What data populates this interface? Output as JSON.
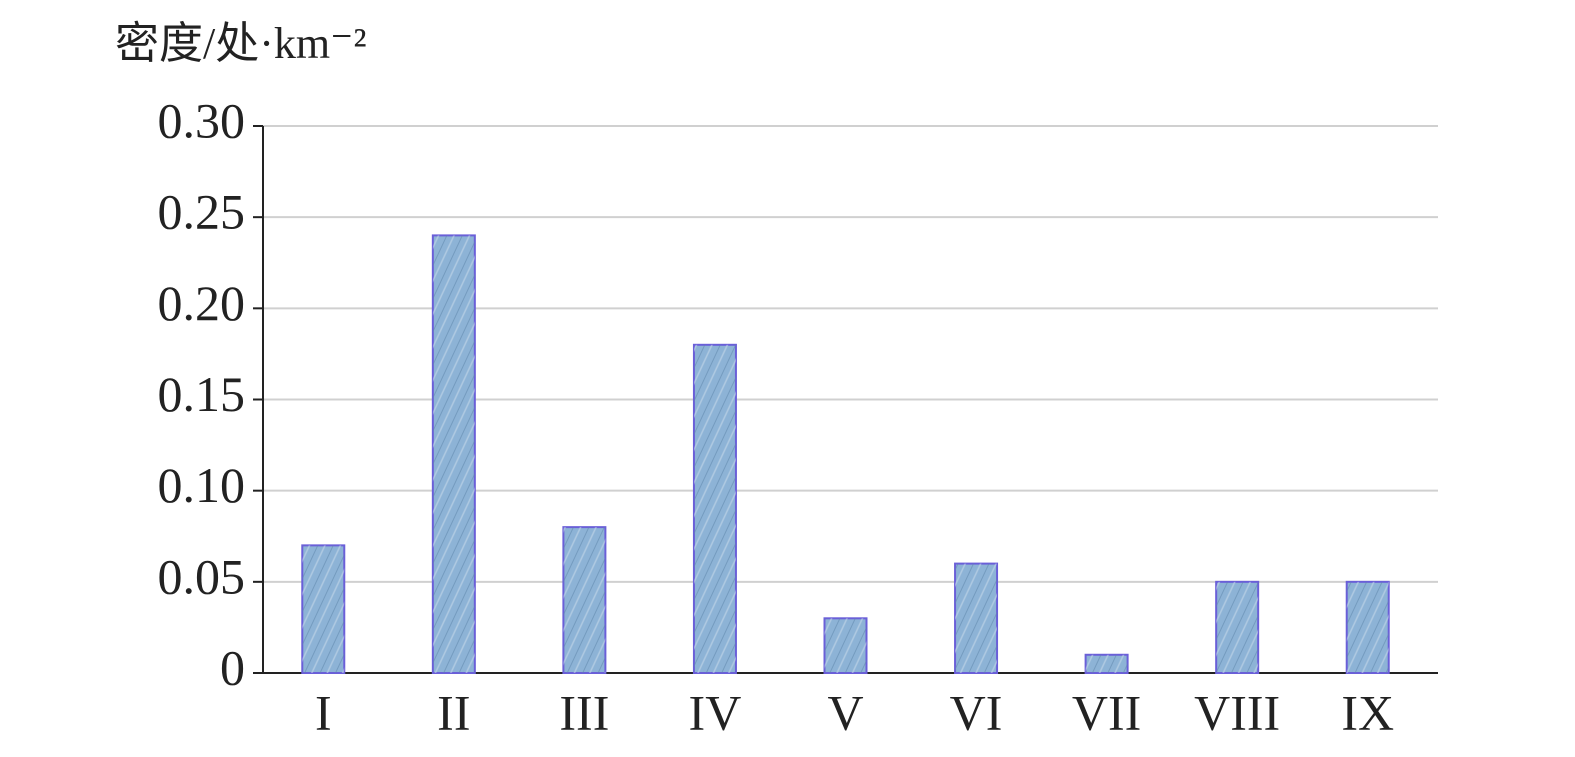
{
  "chart_data": {
    "type": "bar",
    "y_label": "密度/处·km⁻²",
    "categories": [
      "I",
      "II",
      "III",
      "IV",
      "V",
      "VI",
      "VII",
      "VIII",
      "IX"
    ],
    "values": [
      0.07,
      0.24,
      0.08,
      0.18,
      0.03,
      0.06,
      0.01,
      0.05,
      0.05
    ],
    "color": "#8db3d6",
    "ylim": [
      0,
      0.3
    ],
    "yticks": [
      0,
      0.05,
      {
        "value": 0.1,
        "label": "0.10"
      },
      0.15,
      {
        "value": 0.2,
        "label": "0.20"
      },
      0.25,
      {
        "value": 0.3,
        "label": "0.30"
      }
    ],
    "grid": true
  }
}
